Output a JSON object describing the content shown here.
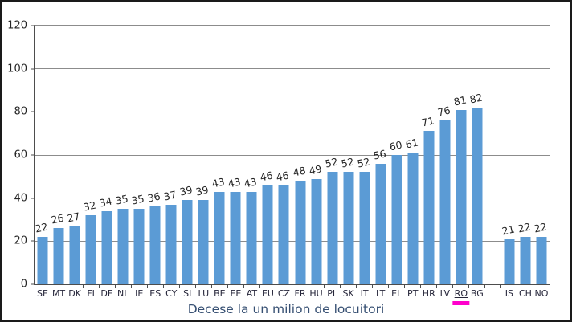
{
  "frame": {
    "background": "#FFFFFF",
    "border_color": "#1A1A1A"
  },
  "chart_data": {
    "type": "bar",
    "title": "Decese la un milion de locuitori",
    "xlabel": "",
    "ylabel": "",
    "categories": [
      "SE",
      "MT",
      "DK",
      "FI",
      "DE",
      "NL",
      "IE",
      "ES",
      "CY",
      "SI",
      "LU",
      "BE",
      "EE",
      "AT",
      "EU",
      "CZ",
      "FR",
      "HU",
      "PL",
      "SK",
      "IT",
      "LT",
      "EL",
      "PT",
      "HR",
      "LV",
      "RO",
      "BG",
      "IS",
      "CH",
      "NO"
    ],
    "values": [
      22,
      26,
      27,
      32,
      34,
      35,
      35,
      36,
      37,
      39,
      39,
      43,
      43,
      43,
      46,
      46,
      48,
      49,
      52,
      52,
      52,
      56,
      60,
      61,
      71,
      76,
      81,
      82,
      21,
      22,
      22
    ],
    "separator_after_index": 27,
    "highlight_category": "RO",
    "ylim": [
      0,
      120
    ],
    "yticks": [
      0,
      20,
      40,
      60,
      80,
      100,
      120
    ],
    "grid": true,
    "legend": "none",
    "colors": {
      "bar": "#5B9BD5",
      "highlight_underline": "#FF00CC",
      "gridline": "#8C8C8C",
      "axis": "#4D4D4D",
      "title_text": "#375073",
      "label_text": "#262626"
    }
  }
}
